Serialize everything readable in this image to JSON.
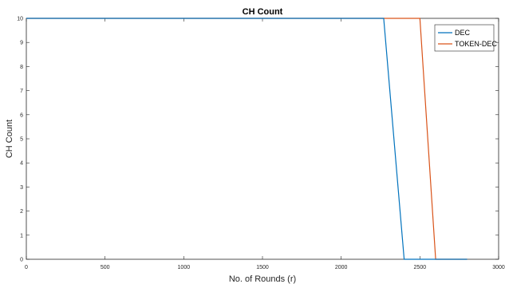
{
  "chart_data": {
    "type": "line",
    "title": "CH Count",
    "xlabel": "No. of Rounds (r)",
    "ylabel": "CH Count",
    "xlim": [
      0,
      3000
    ],
    "ylim": [
      0,
      10
    ],
    "xticks": [
      0,
      500,
      1000,
      1500,
      2000,
      2500,
      3000
    ],
    "yticks": [
      0,
      1,
      2,
      3,
      4,
      5,
      6,
      7,
      8,
      9,
      10
    ],
    "grid": false,
    "legend_position": "top-right",
    "series": [
      {
        "name": "DEC",
        "color": "#0072BD",
        "x": [
          0,
          2270,
          2400,
          2800
        ],
        "y": [
          10,
          10,
          0,
          0
        ]
      },
      {
        "name": "TOKEN-DEC",
        "color": "#D95319",
        "x": [
          0,
          2500,
          2600,
          2800
        ],
        "y": [
          10,
          10,
          0,
          0
        ]
      }
    ]
  }
}
